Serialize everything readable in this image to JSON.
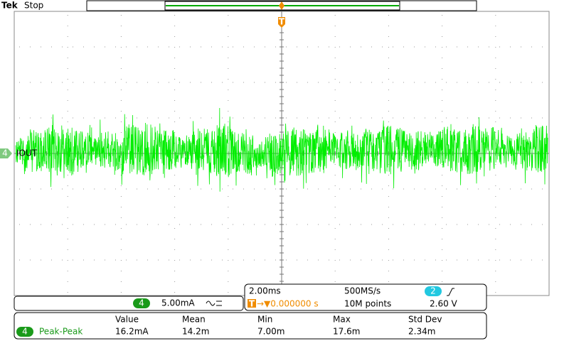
{
  "header": {
    "brand": "Tek",
    "status": "Stop"
  },
  "trigger": {
    "marker": "T"
  },
  "channel": {
    "number": "4",
    "label": "IOUT"
  },
  "vertical": {
    "channel": "4",
    "scale": "5.00mA"
  },
  "horizontal": {
    "scale": "2.00ms",
    "sample_rate": "500MS/s",
    "trigger_marker": "T",
    "trigger_position": "→▼0.000000 s",
    "record_length": "10M points"
  },
  "trigger_settings": {
    "source": "2",
    "level": "2.60 V"
  },
  "measurements": {
    "headers": [
      "Value",
      "Mean",
      "Min",
      "Max",
      "Std Dev"
    ],
    "rows": [
      {
        "channel": "4",
        "name": "Peak-Peak",
        "values": [
          "16.2mA",
          "14.2m",
          "7.00m",
          "17.6m",
          "2.34m"
        ]
      }
    ]
  }
}
